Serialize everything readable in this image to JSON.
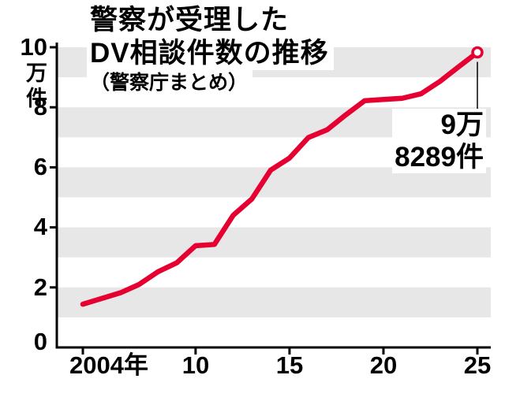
{
  "title": {
    "line1": "警察が受理した",
    "line2": "DV相談件数の推移",
    "source": "（警察庁まとめ）"
  },
  "annotation": {
    "line1": "9万",
    "line2": "8289件"
  },
  "y_axis": {
    "unit_top": "10",
    "unit_mid": "万",
    "unit_bottom": "件",
    "labels": [
      "8",
      "6",
      "4",
      "2",
      "0"
    ]
  },
  "x_axis": {
    "labels": [
      "2004年",
      "10",
      "15",
      "20",
      "25"
    ]
  },
  "colors": {
    "line": "#e60032",
    "stripe": "#e7e7e7",
    "axis": "#000000",
    "marker_fill": "#ffffff",
    "leader": "#000000"
  },
  "chart_data": {
    "type": "line",
    "title": "警察が受理したDV相談件数の推移（警察庁まとめ）",
    "ylabel": "万件",
    "ylim": [
      0,
      10
    ],
    "xlim": [
      2004,
      2025
    ],
    "grid": "striped-horizontal-bands",
    "legend": "none",
    "stripe_bands": [
      [
        1,
        2
      ],
      [
        3,
        4
      ],
      [
        5,
        6
      ],
      [
        7,
        8
      ],
      [
        9,
        10
      ]
    ],
    "y_ticks": [
      0,
      2,
      4,
      6,
      8,
      10
    ],
    "x_tick_years": [
      2004,
      2010,
      2015,
      2020,
      2025
    ],
    "x": [
      2004,
      2005,
      2006,
      2007,
      2008,
      2009,
      2010,
      2011,
      2012,
      2013,
      2014,
      2015,
      2016,
      2017,
      2018,
      2019,
      2020,
      2021,
      2022,
      2023,
      2024,
      2025
    ],
    "values": [
      1.44,
      1.63,
      1.82,
      2.1,
      2.52,
      2.82,
      3.39,
      3.43,
      4.4,
      4.95,
      5.91,
      6.31,
      6.99,
      7.25,
      7.75,
      8.22,
      8.26,
      8.3,
      8.45,
      8.86,
      9.35,
      9.8289
    ],
    "last_point_label": "9万8289件",
    "last_point_marker": "open-circle"
  }
}
